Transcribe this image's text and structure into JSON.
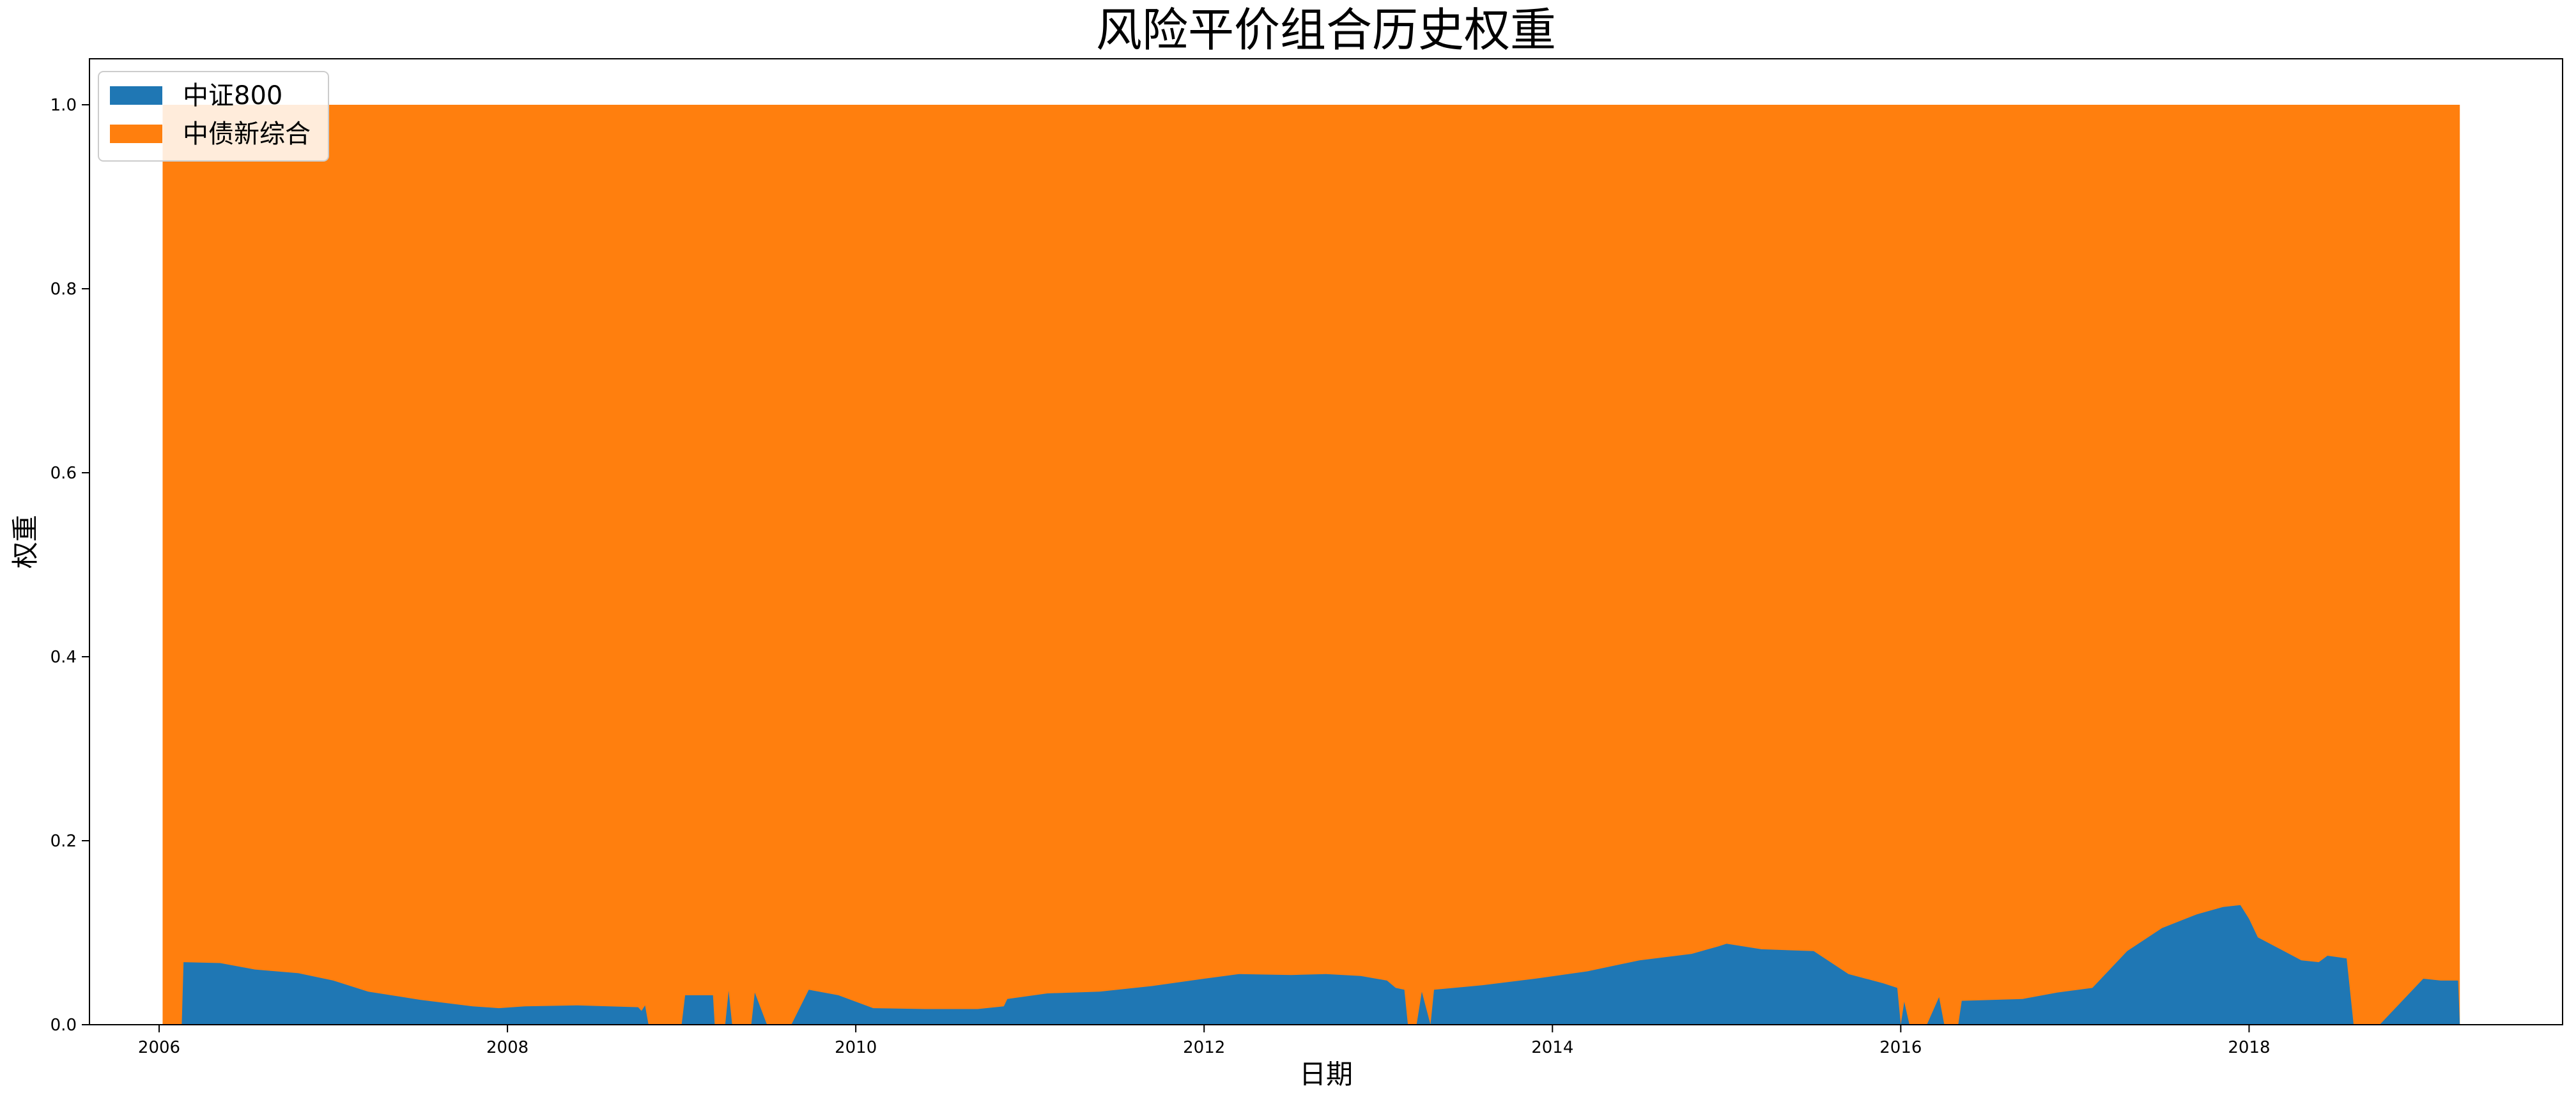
{
  "chart_data": {
    "type": "area",
    "stacked": true,
    "title": "风险平价组合历史权重",
    "xlabel": "日期",
    "ylabel": "权重",
    "xlim": [
      2005.6,
      2019.8
    ],
    "ylim": [
      0,
      1.05
    ],
    "xticks": [
      2006,
      2008,
      2010,
      2012,
      2014,
      2016,
      2018
    ],
    "xtick_labels": [
      "2006",
      "2008",
      "2010",
      "2012",
      "2014",
      "2016",
      "2018"
    ],
    "yticks": [
      0.0,
      0.2,
      0.4,
      0.6,
      0.8,
      1.0
    ],
    "ytick_labels": [
      "0.0",
      "0.2",
      "0.4",
      "0.6",
      "0.8",
      "1.0"
    ],
    "legend_position": "top-left",
    "series": [
      {
        "name": "中证800",
        "color": "#1f77b4",
        "points": [
          [
            2006.02,
            0.0
          ],
          [
            2006.13,
            0.0
          ],
          [
            2006.14,
            0.068
          ],
          [
            2006.35,
            0.067
          ],
          [
            2006.55,
            0.06
          ],
          [
            2006.8,
            0.056
          ],
          [
            2007.0,
            0.048
          ],
          [
            2007.2,
            0.036
          ],
          [
            2007.5,
            0.027
          ],
          [
            2007.8,
            0.02
          ],
          [
            2007.95,
            0.018
          ],
          [
            2008.1,
            0.02
          ],
          [
            2008.4,
            0.021
          ],
          [
            2008.75,
            0.019
          ],
          [
            2008.77,
            0.015
          ],
          [
            2008.79,
            0.021
          ],
          [
            2008.81,
            0.0
          ],
          [
            2009.0,
            0.0
          ],
          [
            2009.02,
            0.032
          ],
          [
            2009.18,
            0.032
          ],
          [
            2009.19,
            0.0
          ],
          [
            2009.25,
            0.0
          ],
          [
            2009.27,
            0.037
          ],
          [
            2009.29,
            0.0
          ],
          [
            2009.4,
            0.0
          ],
          [
            2009.42,
            0.035
          ],
          [
            2009.49,
            0.0
          ],
          [
            2009.63,
            0.0
          ],
          [
            2009.73,
            0.038
          ],
          [
            2009.9,
            0.032
          ],
          [
            2010.1,
            0.018
          ],
          [
            2010.4,
            0.017
          ],
          [
            2010.7,
            0.017
          ],
          [
            2010.85,
            0.02
          ],
          [
            2010.87,
            0.028
          ],
          [
            2011.1,
            0.034
          ],
          [
            2011.4,
            0.036
          ],
          [
            2011.7,
            0.042
          ],
          [
            2012.0,
            0.05
          ],
          [
            2012.2,
            0.055
          ],
          [
            2012.5,
            0.054
          ],
          [
            2012.7,
            0.055
          ],
          [
            2012.9,
            0.053
          ],
          [
            2013.05,
            0.048
          ],
          [
            2013.1,
            0.04
          ],
          [
            2013.15,
            0.038
          ],
          [
            2013.17,
            0.0
          ],
          [
            2013.22,
            0.0
          ],
          [
            2013.25,
            0.036
          ],
          [
            2013.3,
            0.0
          ],
          [
            2013.32,
            0.038
          ],
          [
            2013.6,
            0.043
          ],
          [
            2013.9,
            0.05
          ],
          [
            2014.2,
            0.058
          ],
          [
            2014.5,
            0.07
          ],
          [
            2014.8,
            0.077
          ],
          [
            2014.95,
            0.085
          ],
          [
            2015.0,
            0.088
          ],
          [
            2015.2,
            0.082
          ],
          [
            2015.5,
            0.08
          ],
          [
            2015.7,
            0.055
          ],
          [
            2015.9,
            0.045
          ],
          [
            2015.98,
            0.04
          ],
          [
            2016.0,
            0.0
          ],
          [
            2016.02,
            0.025
          ],
          [
            2016.05,
            0.0
          ],
          [
            2016.15,
            0.0
          ],
          [
            2016.22,
            0.03
          ],
          [
            2016.25,
            0.0
          ],
          [
            2016.33,
            0.0
          ],
          [
            2016.35,
            0.026
          ],
          [
            2016.7,
            0.028
          ],
          [
            2016.9,
            0.035
          ],
          [
            2017.1,
            0.04
          ],
          [
            2017.3,
            0.08
          ],
          [
            2017.5,
            0.105
          ],
          [
            2017.7,
            0.12
          ],
          [
            2017.85,
            0.128
          ],
          [
            2017.95,
            0.13
          ],
          [
            2018.0,
            0.115
          ],
          [
            2018.05,
            0.095
          ],
          [
            2018.2,
            0.08
          ],
          [
            2018.3,
            0.07
          ],
          [
            2018.4,
            0.068
          ],
          [
            2018.45,
            0.075
          ],
          [
            2018.56,
            0.072
          ],
          [
            2018.6,
            0.0
          ],
          [
            2018.75,
            0.0
          ],
          [
            2019.0,
            0.05
          ],
          [
            2019.1,
            0.048
          ],
          [
            2019.2,
            0.048
          ],
          [
            2019.21,
            0.0
          ]
        ]
      },
      {
        "name": "中债新综合",
        "color": "#ff7f0e",
        "x_range": [
          2006.02,
          2019.21
        ],
        "top": 1.0
      }
    ]
  }
}
